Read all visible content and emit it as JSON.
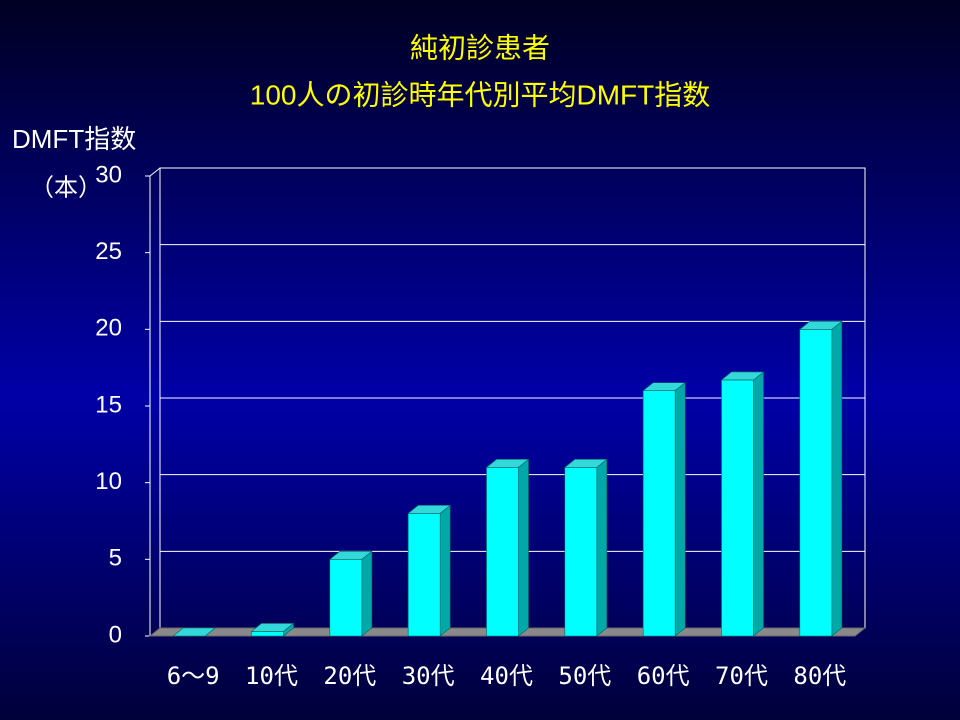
{
  "chart_data": {
    "type": "bar3d",
    "title": [
      "純初診患者",
      "100人の初診時年代別平均DMFT指数"
    ],
    "y_label": "DMFT指数",
    "y_unit": "（本）",
    "categories": [
      "6〜9",
      "10代",
      "20代",
      "30代",
      "40代",
      "50代",
      "60代",
      "70代",
      "80代"
    ],
    "values": [
      0,
      0.3,
      5,
      8,
      11,
      11,
      16,
      16.7,
      20
    ],
    "color": "#00ffff",
    "ylim": [
      0,
      30
    ],
    "yticks": [
      0,
      5,
      10,
      15,
      20,
      25,
      30
    ],
    "grid": true
  }
}
